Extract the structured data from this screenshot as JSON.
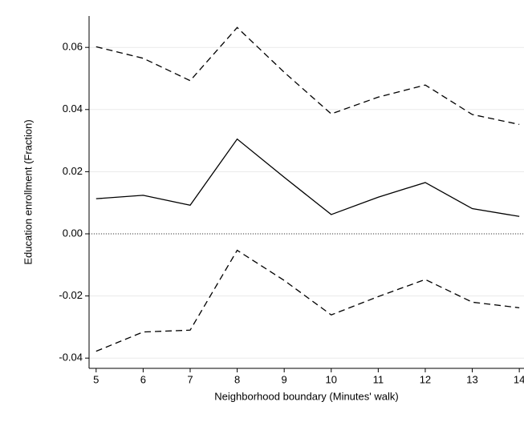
{
  "chart_data": {
    "type": "line",
    "x_label": "Neighborhood boundary (Minutes' walk)",
    "y_label": "Education enrollment (Fraction)",
    "x": [
      5,
      6,
      7,
      8,
      9,
      10,
      11,
      12,
      13,
      14
    ],
    "series": [
      {
        "color": "#000000",
        "dashed": false,
        "values": [
          0.0113,
          0.0124,
          0.0092,
          0.0305,
          0.0182,
          0.0062,
          0.0118,
          0.0165,
          0.0081,
          0.0056
        ]
      },
      {
        "color": "#000000",
        "dashed": true,
        "values": [
          0.0602,
          0.0565,
          0.0493,
          0.0664,
          0.052,
          0.0386,
          0.044,
          0.0479,
          0.0384,
          0.0352
        ]
      },
      {
        "color": "#000000",
        "dashed": true,
        "values": [
          -0.0378,
          -0.0316,
          -0.031,
          -0.0053,
          -0.015,
          -0.0261,
          -0.0202,
          -0.0147,
          -0.022,
          -0.0238
        ]
      }
    ],
    "xlim": [
      4.85,
      14.1
    ],
    "xticks": [
      5,
      6,
      7,
      8,
      9,
      10,
      11,
      12,
      13,
      14
    ],
    "ylim": [
      -0.0433,
      0.0701
    ],
    "yticks": [
      -0.04,
      -0.02,
      {
        "value": 0,
        "label": "0.00"
      },
      0.02,
      0.04,
      0.06
    ],
    "grid": true,
    "reference_line": 0
  }
}
